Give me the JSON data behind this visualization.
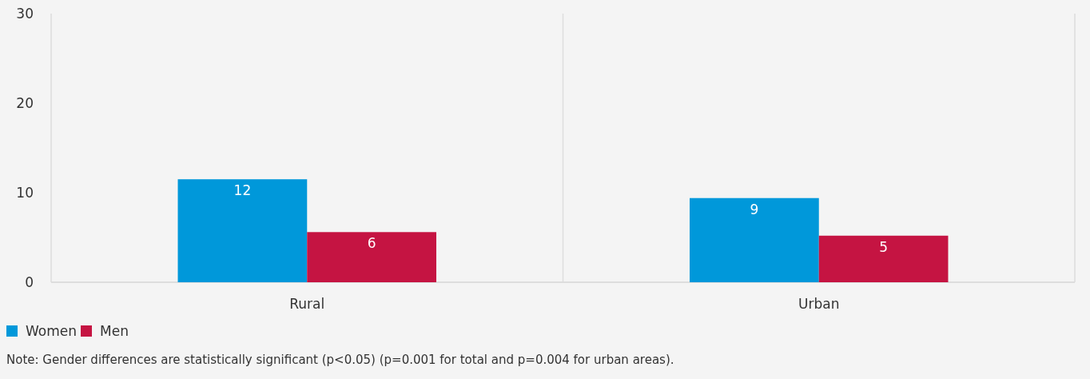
{
  "chart_data": {
    "type": "bar",
    "categories": [
      "Rural",
      "Urban"
    ],
    "series": [
      {
        "name": "Women",
        "color": "#0098da",
        "values": [
          11.5,
          9.4
        ],
        "value_labels": [
          "12",
          "9"
        ]
      },
      {
        "name": "Men",
        "color": "#c51442",
        "values": [
          5.6,
          5.2
        ],
        "value_labels": [
          "6",
          "5"
        ]
      }
    ],
    "ylim": [
      0,
      30
    ],
    "yticks": [
      0,
      10,
      20,
      30
    ],
    "grid": "x",
    "legend": "bottom left",
    "annotations": [
      "Note: Gender differences are statistically significant (p<0.05) (p=0.001 for total and p=0.004 for urban areas)."
    ]
  }
}
